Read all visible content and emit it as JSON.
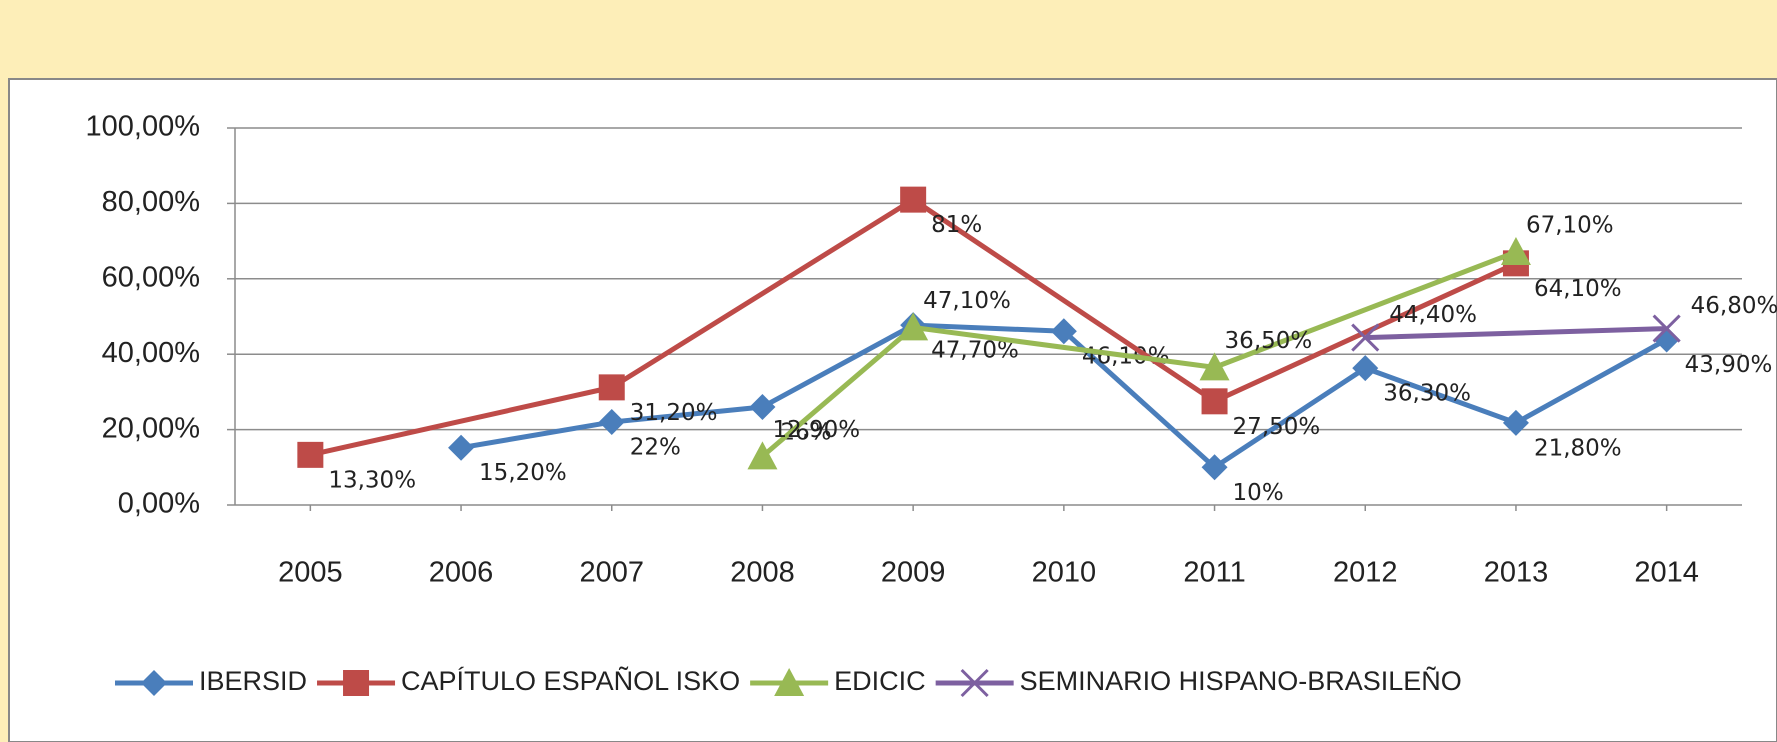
{
  "chart_data": {
    "type": "line",
    "xlim": [
      2004.5,
      2014.5
    ],
    "xticks": [
      2005,
      2006,
      2007,
      2008,
      2009,
      2010,
      2011,
      2012,
      2013,
      2014
    ],
    "ylim": [
      0,
      100
    ],
    "yticks": [
      {
        "value": 0,
        "label": "0,00%"
      },
      {
        "value": 20,
        "label": "20,00%"
      },
      {
        "value": 40,
        "label": "40,00%"
      },
      {
        "value": 60,
        "label": "60,00%"
      },
      {
        "value": 80,
        "label": "80,00%"
      },
      {
        "value": 100,
        "label": "100,00%"
      }
    ],
    "grid": true,
    "legend": "bottom",
    "series": [
      {
        "name": "IBERSID",
        "color": "#4a7ebb",
        "marker": "diamond",
        "x": [
          2006,
          2007,
          2008,
          2009,
          2010,
          2011,
          2012,
          2013,
          2014
        ],
        "values": [
          15.2,
          22,
          26,
          47.7,
          46.1,
          10,
          36.3,
          21.8,
          43.9
        ],
        "value_labels": [
          "15,20%",
          "22%",
          "26%",
          "47,70%",
          "46,10%",
          "10%",
          "36,30%",
          "21,80%",
          "43,90%"
        ]
      },
      {
        "name": "CAPÍTULO ESPAÑOL ISKO",
        "color": "#be4b48",
        "marker": "square",
        "x": [
          2005,
          2007,
          2009,
          2011,
          2013
        ],
        "values": [
          13.3,
          31.2,
          81,
          27.5,
          64.1
        ],
        "value_labels": [
          "13,30%",
          "31,20%",
          "81%",
          "27,50%",
          "64,10%"
        ]
      },
      {
        "name": "EDICIC",
        "color": "#98b954",
        "marker": "triangle",
        "x": [
          2008,
          2009,
          2011,
          2013
        ],
        "values": [
          12.9,
          47.1,
          36.5,
          67.1
        ],
        "value_labels": [
          "12,90%",
          "47,10%",
          "36,50%",
          "67,10%"
        ]
      },
      {
        "name": "SEMINARIO HISPANO-BRASILEÑO",
        "color": "#7d60a0",
        "marker": "x",
        "x": [
          2012,
          2014
        ],
        "values": [
          44.4,
          46.8
        ],
        "value_labels": [
          "44,40%",
          "46,80%"
        ]
      }
    ]
  }
}
